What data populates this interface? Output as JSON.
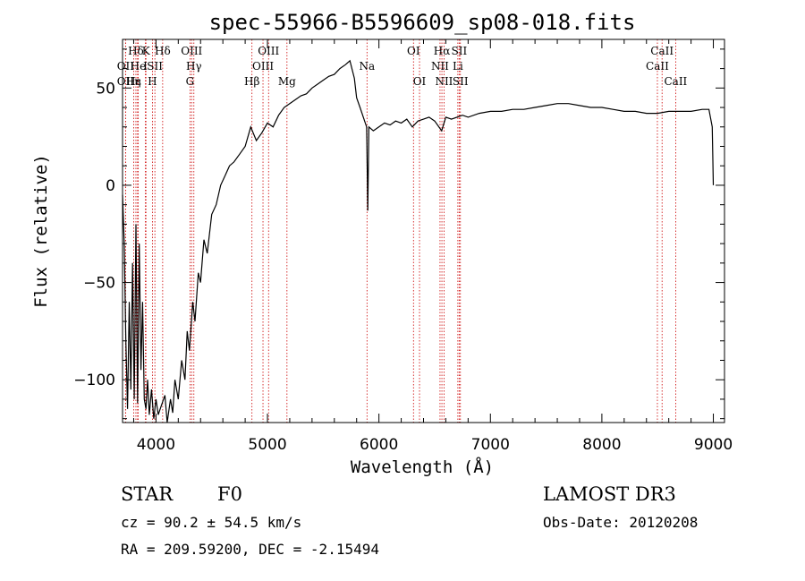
{
  "chart_data": {
    "type": "line",
    "title": "spec-55966-B5596609_sp08-018.fits",
    "xlabel": "Wavelength (Å)",
    "ylabel": "Flux (relative)",
    "xlim": [
      3700,
      9100
    ],
    "ylim": [
      -122,
      75
    ],
    "x_ticks": [
      4000,
      5000,
      6000,
      7000,
      8000,
      9000
    ],
    "y_ticks": [
      -100,
      -50,
      0,
      50
    ],
    "grid": false,
    "series": [
      {
        "points": [
          [
            3700,
            -5
          ],
          [
            3715,
            -30
          ],
          [
            3730,
            -80
          ],
          [
            3745,
            -115
          ],
          [
            3760,
            -60
          ],
          [
            3775,
            -105
          ],
          [
            3790,
            -40
          ],
          [
            3805,
            -110
          ],
          [
            3820,
            -20
          ],
          [
            3835,
            -112
          ],
          [
            3850,
            -30
          ],
          [
            3865,
            -95
          ],
          [
            3880,
            -60
          ],
          [
            3895,
            -110
          ],
          [
            3910,
            -115
          ],
          [
            3925,
            -100
          ],
          [
            3940,
            -118
          ],
          [
            3960,
            -105
          ],
          [
            3980,
            -120
          ],
          [
            4000,
            -110
          ],
          [
            4020,
            -118
          ],
          [
            4050,
            -113
          ],
          [
            4080,
            -108
          ],
          [
            4100,
            -122
          ],
          [
            4130,
            -110
          ],
          [
            4150,
            -117
          ],
          [
            4170,
            -100
          ],
          [
            4200,
            -110
          ],
          [
            4230,
            -90
          ],
          [
            4260,
            -100
          ],
          [
            4280,
            -75
          ],
          [
            4300,
            -85
          ],
          [
            4330,
            -60
          ],
          [
            4350,
            -70
          ],
          [
            4380,
            -45
          ],
          [
            4400,
            -50
          ],
          [
            4430,
            -28
          ],
          [
            4460,
            -35
          ],
          [
            4500,
            -15
          ],
          [
            4540,
            -10
          ],
          [
            4580,
            0
          ],
          [
            4620,
            5
          ],
          [
            4660,
            10
          ],
          [
            4700,
            12
          ],
          [
            4750,
            16
          ],
          [
            4800,
            20
          ],
          [
            4850,
            30
          ],
          [
            4900,
            23
          ],
          [
            4950,
            27
          ],
          [
            5000,
            32
          ],
          [
            5050,
            30
          ],
          [
            5100,
            36
          ],
          [
            5150,
            40
          ],
          [
            5200,
            42
          ],
          [
            5250,
            44
          ],
          [
            5300,
            46
          ],
          [
            5350,
            47
          ],
          [
            5400,
            50
          ],
          [
            5450,
            52
          ],
          [
            5500,
            54
          ],
          [
            5550,
            56
          ],
          [
            5600,
            57
          ],
          [
            5650,
            60
          ],
          [
            5700,
            62
          ],
          [
            5740,
            64
          ],
          [
            5780,
            55
          ],
          [
            5800,
            45
          ],
          [
            5830,
            40
          ],
          [
            5860,
            35
          ],
          [
            5890,
            30
          ],
          [
            5900,
            -13
          ],
          [
            5910,
            30
          ],
          [
            5950,
            28
          ],
          [
            6000,
            30
          ],
          [
            6050,
            32
          ],
          [
            6100,
            31
          ],
          [
            6150,
            33
          ],
          [
            6200,
            32
          ],
          [
            6250,
            34
          ],
          [
            6300,
            30
          ],
          [
            6350,
            33
          ],
          [
            6400,
            34
          ],
          [
            6450,
            35
          ],
          [
            6500,
            33
          ],
          [
            6563,
            28
          ],
          [
            6600,
            35
          ],
          [
            6650,
            34
          ],
          [
            6700,
            35
          ],
          [
            6750,
            36
          ],
          [
            6800,
            35
          ],
          [
            6900,
            37
          ],
          [
            7000,
            38
          ],
          [
            7100,
            38
          ],
          [
            7200,
            39
          ],
          [
            7300,
            39
          ],
          [
            7400,
            40
          ],
          [
            7500,
            41
          ],
          [
            7600,
            42
          ],
          [
            7700,
            42
          ],
          [
            7800,
            41
          ],
          [
            7900,
            40
          ],
          [
            8000,
            40
          ],
          [
            8100,
            39
          ],
          [
            8200,
            38
          ],
          [
            8300,
            38
          ],
          [
            8400,
            37
          ],
          [
            8500,
            37
          ],
          [
            8600,
            38
          ],
          [
            8700,
            38
          ],
          [
            8800,
            38
          ],
          [
            8900,
            39
          ],
          [
            8960,
            39
          ],
          [
            8990,
            30
          ],
          [
            9000,
            0
          ]
        ]
      }
    ],
    "spectral_lines": [
      {
        "label": "Hδ",
        "x": 3820,
        "row": 0
      },
      {
        "label": "K",
        "x": 3910,
        "row": 0
      },
      {
        "label": "Hδ",
        "x": 4060,
        "row": 0
      },
      {
        "label": "OIII",
        "x": 4320,
        "row": 0
      },
      {
        "label": "OIII",
        "x": 5010,
        "row": 0
      },
      {
        "label": "OI",
        "x": 6310,
        "row": 0
      },
      {
        "label": "Hα",
        "x": 6565,
        "row": 0
      },
      {
        "label": "SII",
        "x": 6720,
        "row": 0
      },
      {
        "label": "CaII",
        "x": 8540,
        "row": 0
      },
      {
        "label": "OII",
        "x": 3727,
        "row": 1
      },
      {
        "label": "He",
        "x": 3840,
        "row": 1
      },
      {
        "label": "I",
        "x": 3905,
        "row": 1
      },
      {
        "label": "SII",
        "x": 3990,
        "row": 1
      },
      {
        "label": "Hγ",
        "x": 4340,
        "row": 1
      },
      {
        "label": "OIII",
        "x": 4960,
        "row": 1
      },
      {
        "label": "Na",
        "x": 5893,
        "row": 1
      },
      {
        "label": "NII",
        "x": 6548,
        "row": 1
      },
      {
        "label": "Li",
        "x": 6708,
        "row": 1
      },
      {
        "label": "CaII",
        "x": 8498,
        "row": 1
      },
      {
        "label": "OII",
        "x": 3727,
        "row": 2
      },
      {
        "label": "Hε",
        "x": 3800,
        "row": 2
      },
      {
        "label": "η",
        "x": 3835,
        "row": 2
      },
      {
        "label": "H",
        "x": 3968,
        "row": 2
      },
      {
        "label": "G",
        "x": 4305,
        "row": 2
      },
      {
        "label": "Hβ",
        "x": 4861,
        "row": 2
      },
      {
        "label": "Mg",
        "x": 5175,
        "row": 2
      },
      {
        "label": "OI",
        "x": 6364,
        "row": 2
      },
      {
        "label": "NII",
        "x": 6584,
        "row": 2
      },
      {
        "label": "SII",
        "x": 6731,
        "row": 2
      },
      {
        "label": "CaII",
        "x": 8662,
        "row": 2
      }
    ]
  },
  "info": {
    "object_class": "STAR",
    "subclass": "F0",
    "survey": "LAMOST DR3",
    "cz": "cz = 90.2 ± 54.5 km/s",
    "obs_date": "Obs-Date: 20120208",
    "coords": "RA = 209.59200, DEC =  -2.15494"
  },
  "colors": {
    "spectrum": "#000000",
    "lines": "#cc0000",
    "axes": "#000000"
  }
}
